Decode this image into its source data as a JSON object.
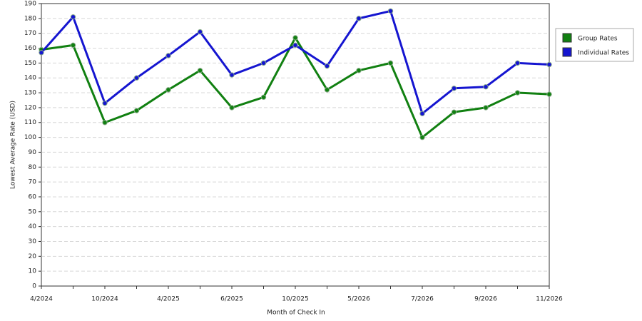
{
  "chart_data": {
    "type": "line",
    "x_label": "Month of Check In",
    "y_label": "Lowest Average Rate (USD)",
    "categories": [
      "4/2024",
      null,
      "10/2024",
      null,
      "4/2025",
      null,
      "6/2025",
      null,
      "10/2025",
      null,
      "5/2026",
      null,
      "7/2026",
      null,
      "9/2026",
      null,
      "11/2026"
    ],
    "series": [
      {
        "name": "Group Rates",
        "color": "#118011",
        "values": [
          159,
          162,
          110,
          118,
          132,
          145,
          120,
          127,
          167,
          132,
          145,
          150,
          100,
          117,
          120,
          130,
          129
        ]
      },
      {
        "name": "Individual Rates",
        "color": "#1515d0",
        "values": [
          157,
          181,
          123,
          140,
          155,
          171,
          142,
          150,
          162,
          148,
          180,
          185,
          116,
          133,
          134,
          150,
          149
        ]
      }
    ],
    "ylim": [
      0,
      190
    ],
    "yticks": [
      0,
      10,
      20,
      30,
      40,
      50,
      60,
      70,
      80,
      90,
      100,
      110,
      120,
      130,
      140,
      150,
      160,
      170,
      180,
      190
    ],
    "grid": true,
    "legend": "right"
  }
}
